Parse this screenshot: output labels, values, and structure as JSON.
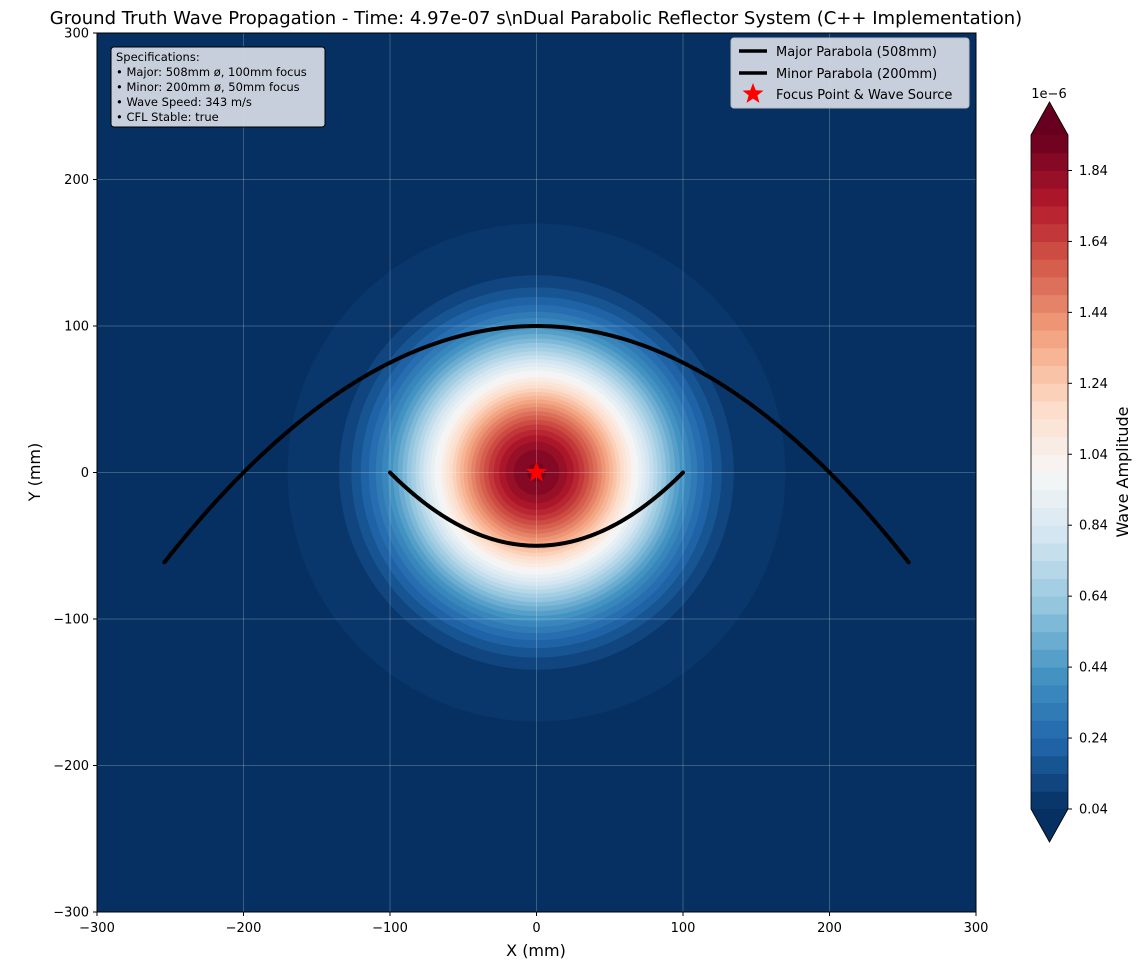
{
  "chart_data": {
    "type": "heatmap",
    "title": "Ground Truth Wave Propagation - Time: 4.97e-07 s\\nDual Parabolic Reflector System (C++ Implementation)",
    "xlabel": "X (mm)",
    "ylabel": "Y (mm)",
    "xlim": [
      -300,
      300
    ],
    "ylim": [
      -300,
      300
    ],
    "x_ticks": [
      -300,
      -200,
      -100,
      0,
      100,
      200,
      300
    ],
    "y_ticks": [
      -300,
      -200,
      -100,
      0,
      100,
      200,
      300
    ],
    "grid": true,
    "field": {
      "description": "radially symmetric wave amplitude centered at focus",
      "center": [
        0,
        0
      ],
      "outer_radius_mm": 170,
      "peak_amplitude": 1.9e-06,
      "min_amplitude": 4e-08
    },
    "series": [
      {
        "name": "Major Parabola (508mm)",
        "type": "line",
        "equation": "y = 100 - x^2/400",
        "x_range": [
          -254,
          254
        ]
      },
      {
        "name": "Minor Parabola (200mm)",
        "type": "line",
        "equation": "y = x^2/200 - 50",
        "x_range": [
          -100,
          100
        ]
      },
      {
        "name": "Focus Point & Wave Source",
        "type": "scatter",
        "points": [
          [
            0,
            0
          ]
        ]
      }
    ],
    "legend_position": "top-right",
    "colorbar": {
      "label": "Wave Amplitude",
      "exponent_label": "1e−6",
      "ticks": [
        "0.04",
        "0.24",
        "0.44",
        "0.64",
        "0.84",
        "1.04",
        "1.24",
        "1.44",
        "1.64",
        "1.84"
      ],
      "range": [
        0.04,
        1.94
      ],
      "extend": "both"
    },
    "annotation": {
      "lines": [
        "Specifications:",
        "• Major: 508mm ø, 100mm focus",
        "• Minor: 200mm ø, 50mm focus",
        "• Wave Speed: 343 m/s",
        "• CFL Stable: true"
      ]
    }
  },
  "colors": {
    "background_field": "#053061",
    "parabola": "#000000",
    "focus_marker": "#ff0000"
  }
}
